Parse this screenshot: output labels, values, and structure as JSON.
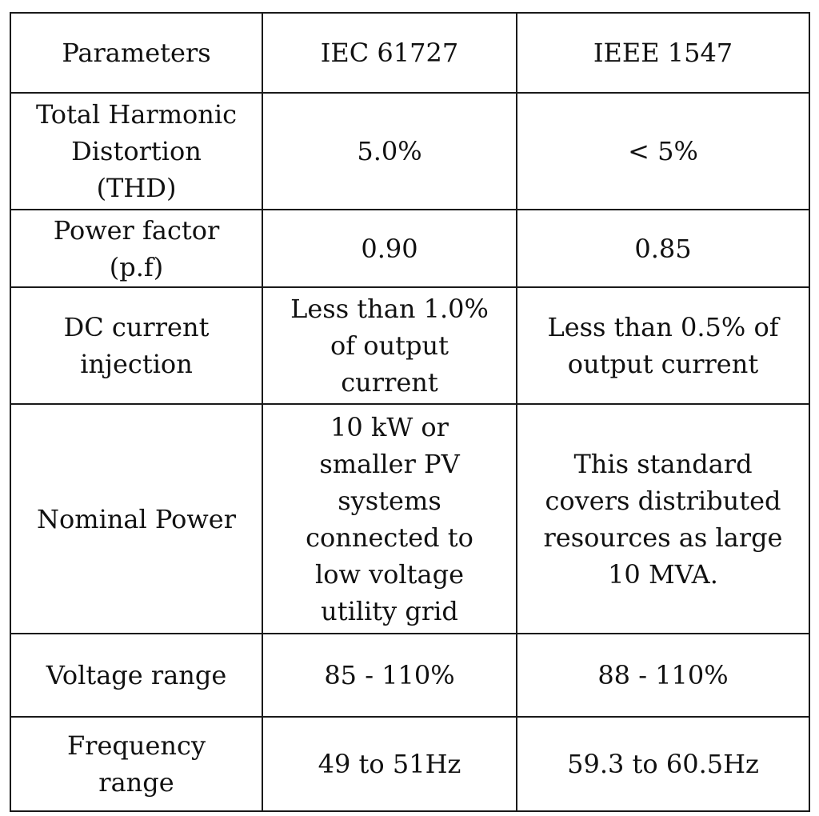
{
  "table": {
    "header": [
      "Parameters",
      "IEC 61727",
      "IEEE 1547"
    ],
    "rows": [
      [
        "Total Harmonic\nDistortion\n(THD)",
        "5.0%",
        "< 5%"
      ],
      [
        "Power factor\n(p.f)",
        "0.90",
        "0.85"
      ],
      [
        "DC current\ninjection",
        "Less than 1.0%\nof output\ncurrent",
        "Less than 0.5% of\noutput current"
      ],
      [
        "Nominal Power",
        "10 kW or\nsmaller PV\nsystems\nconnected to\nlow voltage\nutility grid",
        "This standard\ncovers distributed\nresources as large\n10 MVA."
      ],
      [
        "Voltage range",
        "85 - 110%",
        "88 - 110%"
      ],
      [
        "Frequency\nrange",
        "49 to 51Hz",
        "59.3 to 60.5Hz"
      ]
    ]
  }
}
